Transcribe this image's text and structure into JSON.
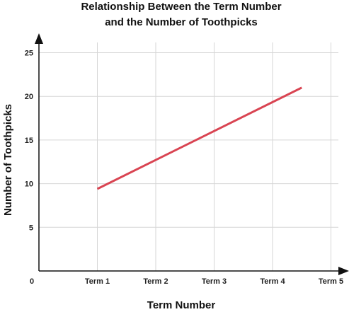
{
  "chart_data": {
    "type": "line",
    "title_lines": [
      "Relationship Between the Term Number",
      "and the Number of Toothpicks"
    ],
    "xlabel": "Term Number",
    "ylabel": "Number of Toothpicks",
    "origin_label": "0",
    "categories": [
      "Term 1",
      "Term 2",
      "Term 3",
      "Term 4",
      "Term 5"
    ],
    "yticks": [
      5,
      10,
      15,
      20,
      25
    ],
    "ylim": [
      0,
      26.5
    ],
    "grid": true,
    "series": [
      {
        "color": "#d94452",
        "x": [
          1,
          4.5
        ],
        "y": [
          9.4,
          21
        ]
      }
    ]
  }
}
